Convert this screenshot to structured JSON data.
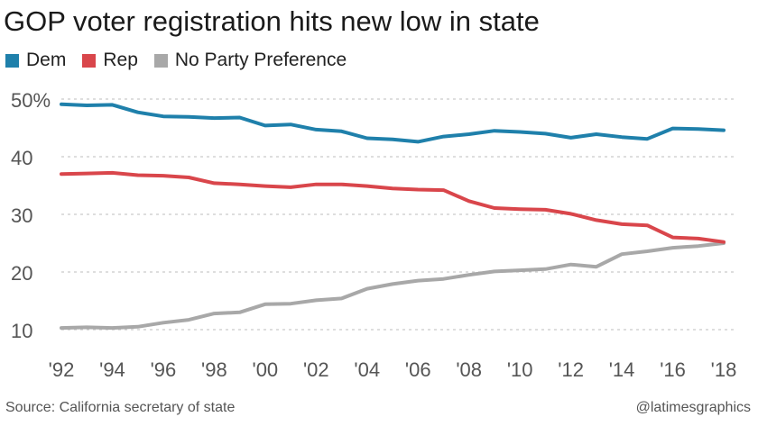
{
  "colors": {
    "dem": "#1f80ab",
    "rep": "#d9464b",
    "npp": "#a8a8a8",
    "grid": "#c9c9c9",
    "tick": "#555555"
  },
  "footer": {
    "source": "Source: California secretary of state",
    "credit": "@latimesgraphics"
  },
  "chart_data": {
    "type": "line",
    "title": "GOP voter registration hits new low in state",
    "xlabel": "",
    "ylabel": "",
    "x": [
      1992,
      1993,
      1994,
      1995,
      1996,
      1997,
      1998,
      1999,
      2000,
      2001,
      2002,
      2003,
      2004,
      2005,
      2006,
      2007,
      2008,
      2009,
      2010,
      2011,
      2012,
      2013,
      2014,
      2015,
      2016,
      2017,
      2018
    ],
    "xticks": [
      1992,
      1994,
      1996,
      1998,
      2000,
      2002,
      2004,
      2006,
      2008,
      2010,
      2012,
      2014,
      2016,
      2018
    ],
    "xtick_labels": [
      "'92",
      "'94",
      "'96",
      "'98",
      "'00",
      "'02",
      "'04",
      "'06",
      "'08",
      "'10",
      "'12",
      "'14",
      "'16",
      "'18"
    ],
    "ylim": [
      10,
      50
    ],
    "yticks": [
      10,
      20,
      30,
      40,
      50
    ],
    "ytick_labels": [
      "10",
      "20",
      "30",
      "40",
      "50%"
    ],
    "grid": true,
    "legend_position": "top-left",
    "series": [
      {
        "name": "Dem",
        "color": "#1f80ab",
        "values": [
          49.1,
          48.9,
          49.0,
          47.7,
          47.0,
          46.9,
          46.7,
          46.8,
          45.4,
          45.6,
          44.7,
          44.4,
          43.2,
          43.0,
          42.6,
          43.5,
          43.9,
          44.5,
          44.3,
          44.0,
          43.3,
          43.9,
          43.4,
          43.1,
          44.9,
          44.8,
          44.6
        ]
      },
      {
        "name": "Rep",
        "color": "#d9464b",
        "values": [
          37.0,
          37.1,
          37.2,
          36.8,
          36.7,
          36.4,
          35.4,
          35.2,
          34.9,
          34.7,
          35.2,
          35.2,
          34.9,
          34.5,
          34.3,
          34.2,
          32.3,
          31.1,
          30.9,
          30.8,
          30.1,
          29.0,
          28.3,
          28.1,
          26.0,
          25.8,
          25.2
        ]
      },
      {
        "name": "No Party Preference",
        "color": "#a8a8a8",
        "values": [
          10.3,
          10.4,
          10.3,
          10.5,
          11.2,
          11.7,
          12.8,
          13.0,
          14.4,
          14.5,
          15.1,
          15.4,
          17.1,
          17.9,
          18.5,
          18.8,
          19.5,
          20.1,
          20.3,
          20.5,
          21.3,
          20.9,
          23.1,
          23.6,
          24.2,
          24.5,
          25.0
        ]
      }
    ]
  }
}
